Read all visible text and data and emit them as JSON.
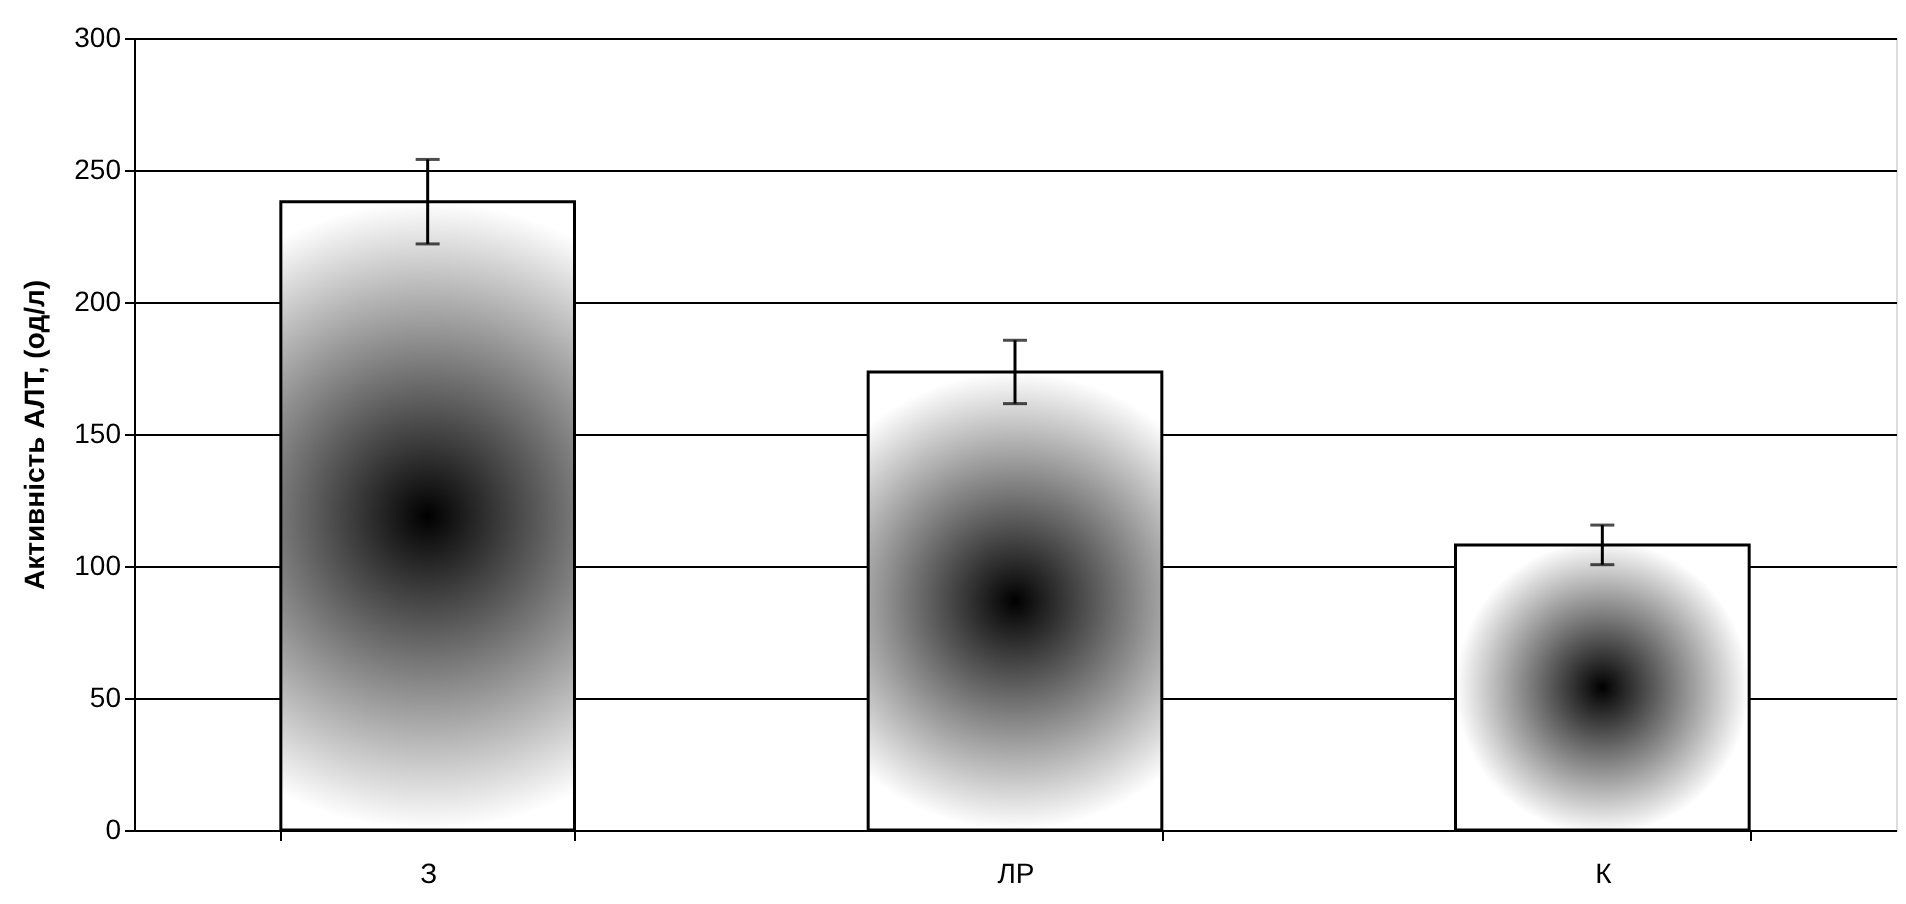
{
  "chart_data": {
    "type": "bar",
    "ylabel": "Активність АЛТ, (од/л)",
    "categories": [
      "З",
      "ЛР",
      "К"
    ],
    "values": [
      238,
      173.5,
      108
    ],
    "errors": [
      16,
      12,
      7.5
    ],
    "color": "#000000",
    "ylim": [
      0,
      300
    ],
    "yticks": [
      0,
      50,
      100,
      150,
      200,
      250,
      300
    ],
    "grid": "y"
  }
}
